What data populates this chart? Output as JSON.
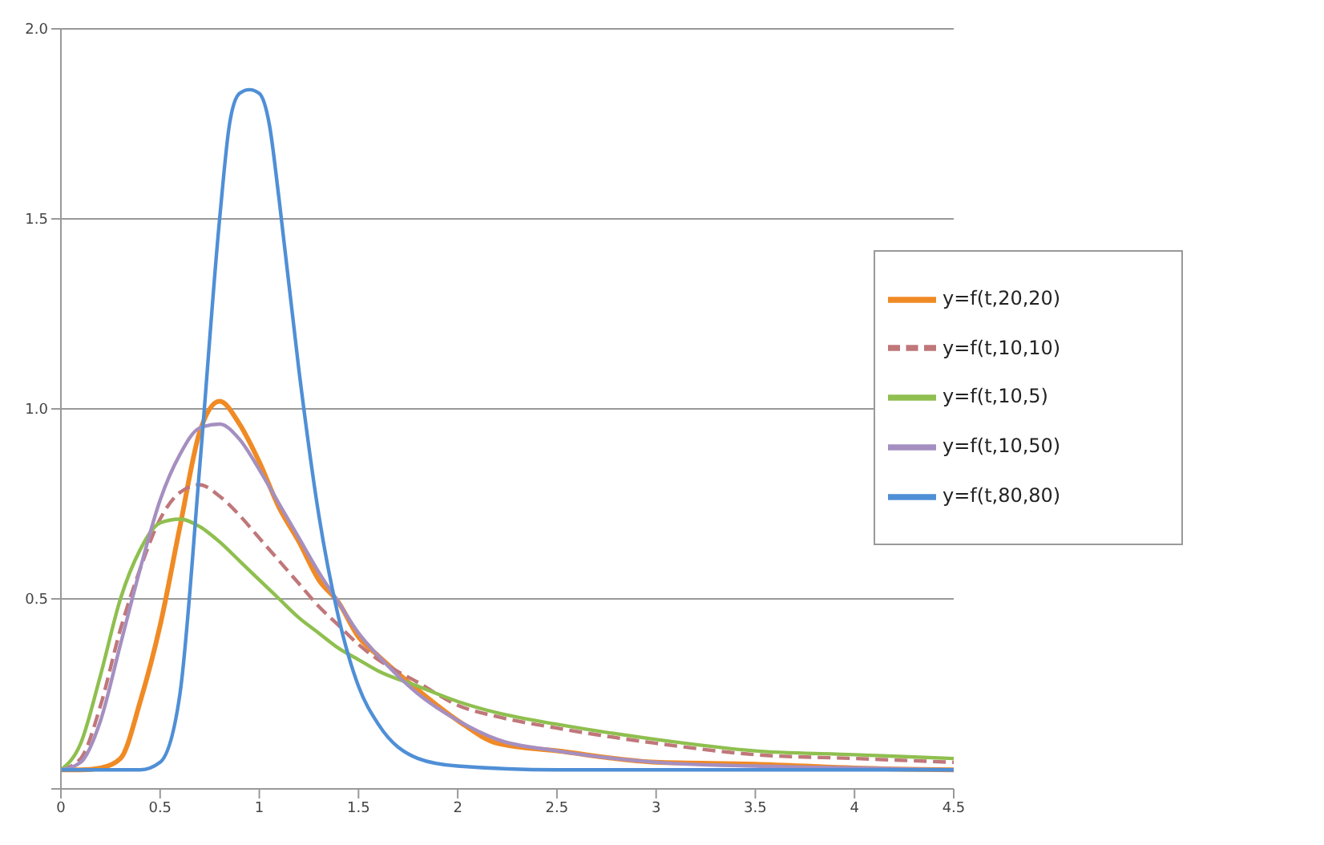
{
  "chart_data": {
    "type": "line",
    "xlim": [
      0,
      4.5
    ],
    "xticks": [
      0,
      0.5,
      1,
      1.5,
      2,
      2.5,
      3,
      3.5,
      4,
      4.5
    ],
    "ylim": [
      0,
      2.0
    ],
    "yticks": [
      {
        "value": 0,
        "label": null
      },
      {
        "value": 0.5,
        "label": "0.5"
      },
      {
        "value": 1.0,
        "label": "1.0"
      },
      {
        "value": 1.5,
        "label": "1.5"
      },
      {
        "value": 2.0,
        "label": "2.0"
      }
    ],
    "grid": "y",
    "legend": "right",
    "marker": "none",
    "series": [
      {
        "name": "y=f(t,20,20)",
        "color": "#f08a24",
        "line_style": "solid",
        "x": [
          0,
          0.1,
          0.2,
          0.3,
          0.4,
          0.5,
          0.6,
          0.7,
          0.8,
          0.9,
          1.0,
          1.1,
          1.2,
          1.3,
          1.4,
          1.5,
          1.6,
          1.8,
          2.0,
          2.2,
          2.5,
          3,
          3.5,
          4,
          4.5
        ],
        "values": [
          0.05,
          0.05,
          0.055,
          0.08,
          0.23,
          0.43,
          0.69,
          0.94,
          1.02,
          0.96,
          0.86,
          0.74,
          0.65,
          0.55,
          0.49,
          0.4,
          0.35,
          0.26,
          0.18,
          0.12,
          0.1,
          0.07,
          0.065,
          0.055,
          0.05
        ]
      },
      {
        "name": "y=f(t,10,10)",
        "color": "#c0777a",
        "line_style": "dashed",
        "x": [
          0,
          0.1,
          0.2,
          0.3,
          0.4,
          0.5,
          0.6,
          0.7,
          0.8,
          0.9,
          1.0,
          1.1,
          1.2,
          1.3,
          1.4,
          1.5,
          1.6,
          1.8,
          2.0,
          2.2,
          2.5,
          3,
          3.5,
          4,
          4.5
        ],
        "values": [
          0.05,
          0.08,
          0.22,
          0.42,
          0.58,
          0.71,
          0.78,
          0.8,
          0.77,
          0.72,
          0.66,
          0.6,
          0.54,
          0.48,
          0.43,
          0.38,
          0.34,
          0.28,
          0.22,
          0.19,
          0.16,
          0.12,
          0.09,
          0.08,
          0.07
        ]
      },
      {
        "name": "y=f(t,10,5)",
        "color": "#8fbf4f",
        "line_style": "solid",
        "x": [
          0,
          0.1,
          0.2,
          0.3,
          0.4,
          0.5,
          0.6,
          0.7,
          0.8,
          0.9,
          1.0,
          1.1,
          1.2,
          1.3,
          1.4,
          1.5,
          1.6,
          1.8,
          2.0,
          2.2,
          2.5,
          3,
          3.5,
          4,
          4.5
        ],
        "values": [
          0.05,
          0.12,
          0.3,
          0.5,
          0.63,
          0.7,
          0.71,
          0.69,
          0.65,
          0.6,
          0.55,
          0.5,
          0.45,
          0.41,
          0.37,
          0.34,
          0.31,
          0.27,
          0.23,
          0.2,
          0.17,
          0.13,
          0.1,
          0.09,
          0.08
        ]
      },
      {
        "name": "y=f(t,10,50)",
        "color": "#a58fc0",
        "line_style": "solid",
        "x": [
          0,
          0.1,
          0.2,
          0.3,
          0.4,
          0.5,
          0.6,
          0.7,
          0.8,
          0.9,
          1.0,
          1.1,
          1.2,
          1.3,
          1.4,
          1.5,
          1.6,
          1.8,
          2.0,
          2.2,
          2.5,
          3,
          3.5,
          4,
          4.5
        ],
        "values": [
          0.05,
          0.07,
          0.18,
          0.38,
          0.58,
          0.76,
          0.88,
          0.95,
          0.96,
          0.92,
          0.84,
          0.75,
          0.66,
          0.57,
          0.49,
          0.41,
          0.35,
          0.25,
          0.18,
          0.13,
          0.1,
          0.07,
          0.06,
          0.055,
          0.05
        ]
      },
      {
        "name": "y=f(t,80,80)",
        "color": "#4f8fd6",
        "line_style": "solid",
        "x": [
          0,
          0.2,
          0.4,
          0.5,
          0.6,
          0.7,
          0.8,
          0.85,
          0.9,
          0.95,
          1.0,
          1.05,
          1.1,
          1.2,
          1.3,
          1.4,
          1.5,
          1.6,
          1.8,
          2.0,
          2.5,
          3,
          3.5,
          4,
          4.5
        ],
        "values": [
          0.05,
          0.05,
          0.05,
          0.07,
          0.25,
          0.85,
          1.5,
          1.75,
          1.83,
          1.84,
          1.83,
          1.75,
          1.55,
          1.1,
          0.72,
          0.45,
          0.27,
          0.17,
          0.08,
          0.06,
          0.05,
          0.05,
          0.05,
          0.05,
          0.05
        ]
      }
    ]
  }
}
